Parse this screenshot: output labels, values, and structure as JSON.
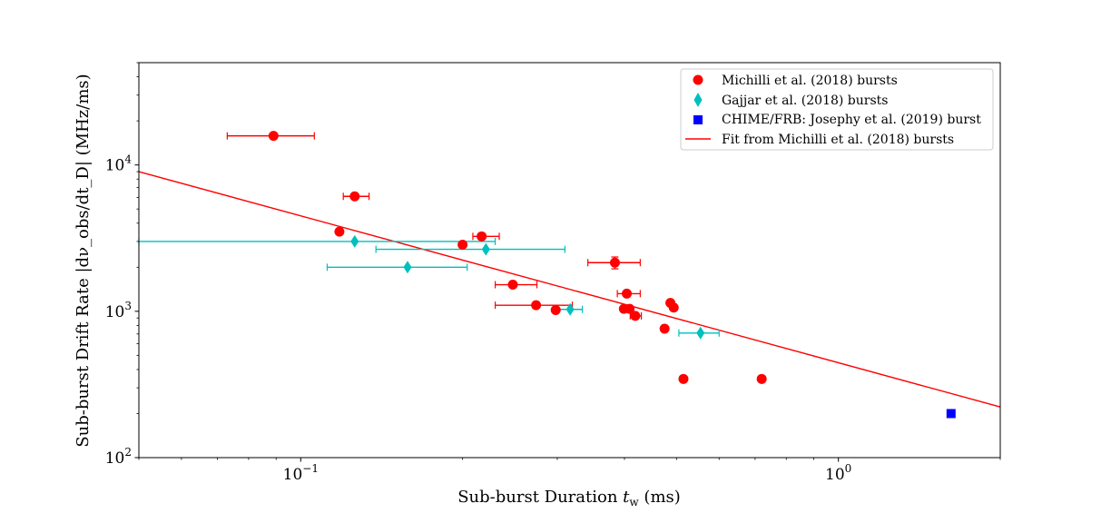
{
  "chart_data": {
    "type": "scatter",
    "x_scale": "log",
    "y_scale": "log",
    "xlim": [
      0.05,
      2.0
    ],
    "ylim": [
      100,
      50000
    ],
    "xlabel": "Sub-burst Duration",
    "xlabel_symbol": "t",
    "xlabel_sub": "w",
    "xlabel_unit": "(ms)",
    "ylabel": "Sub-burst Drift Rate |dν_obs/dt_D| (MHz/ms)",
    "x_ticks": [
      {
        "value": 0.1,
        "base": "10",
        "exp": "−1"
      },
      {
        "value": 1.0,
        "base": "10",
        "exp": "0"
      }
    ],
    "y_ticks": [
      {
        "value": 100,
        "base": "10",
        "exp": "2"
      },
      {
        "value": 1000,
        "base": "10",
        "exp": "3"
      },
      {
        "value": 10000,
        "base": "10",
        "exp": "4"
      }
    ],
    "legend_position": "top-right",
    "series": [
      {
        "name": "Michilli et al. (2018) bursts",
        "marker": "circle",
        "color": "#ff0000",
        "points": [
          {
            "x": 0.089,
            "y": 15800,
            "xerr": [
              0.073,
              0.106
            ],
            "yerr": [
              15300,
              16300
            ]
          },
          {
            "x": 0.126,
            "y": 6100,
            "xerr": [
              0.12,
              0.134
            ],
            "yerr": [
              5900,
              6300
            ]
          },
          {
            "x": 0.118,
            "y": 3500
          },
          {
            "x": 0.2,
            "y": 2850
          },
          {
            "x": 0.217,
            "y": 3250,
            "xerr": [
              0.209,
              0.234
            ]
          },
          {
            "x": 0.248,
            "y": 1520,
            "xerr": [
              0.23,
              0.275
            ]
          },
          {
            "x": 0.274,
            "y": 1100,
            "xerr": [
              0.23,
              0.32
            ]
          },
          {
            "x": 0.298,
            "y": 1020
          },
          {
            "x": 0.384,
            "y": 2150,
            "xerr": [
              0.342,
              0.428
            ],
            "yerr": [
              1950,
              2350
            ]
          },
          {
            "x": 0.404,
            "y": 1320,
            "xerr": [
              0.388,
              0.428
            ]
          },
          {
            "x": 0.399,
            "y": 1040
          },
          {
            "x": 0.409,
            "y": 1040
          },
          {
            "x": 0.419,
            "y": 930,
            "xerr": [
              0.41,
              0.43
            ]
          },
          {
            "x": 0.475,
            "y": 760
          },
          {
            "x": 0.487,
            "y": 1140
          },
          {
            "x": 0.494,
            "y": 1060
          },
          {
            "x": 0.515,
            "y": 345
          },
          {
            "x": 0.72,
            "y": 345
          }
        ]
      },
      {
        "name": "Gajjar et al. (2018) bursts",
        "marker": "diamond",
        "color": "#00bfbf",
        "points": [
          {
            "x": 0.126,
            "y": 3000,
            "xerr": [
              0.05,
              0.23
            ]
          },
          {
            "x": 0.221,
            "y": 2650,
            "xerr": [
              0.138,
              0.31
            ]
          },
          {
            "x": 0.158,
            "y": 2000,
            "xerr": [
              0.112,
              0.204
            ]
          },
          {
            "x": 0.317,
            "y": 1030,
            "xerr": [
              0.298,
              0.334
            ]
          },
          {
            "x": 0.554,
            "y": 710,
            "xerr": [
              0.505,
              0.6
            ]
          }
        ]
      },
      {
        "name": "CHIME/FRB: Josephy et al. (2019) burst",
        "marker": "square",
        "color": "#0000ff",
        "points": [
          {
            "x": 1.62,
            "y": 200
          }
        ]
      }
    ],
    "fit_line": {
      "name": "Fit from Michilli et al. (2018) bursts",
      "color": "#ff0000",
      "x": [
        0.05,
        2.0
      ],
      "y": [
        9000,
        222
      ]
    }
  }
}
